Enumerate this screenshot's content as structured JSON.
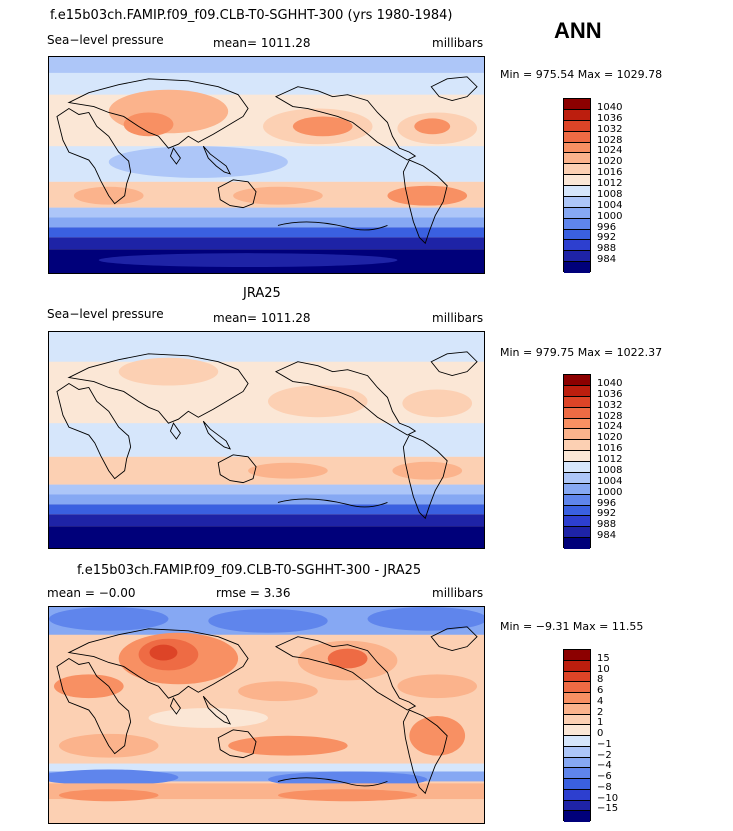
{
  "season": "ANN",
  "palette_main": [
    "#00007a",
    "#1e23a6",
    "#2d3fcf",
    "#3a60e0",
    "#5f85ec",
    "#86a8f3",
    "#adc6f8",
    "#d6e6fb",
    "#fbe7d6",
    "#fcd0b3",
    "#fbb38c",
    "#f89063",
    "#ee6b44",
    "#dd4427",
    "#bc1e0e",
    "#8c0000"
  ],
  "palette_diff": [
    "#00007a",
    "#1e23a6",
    "#2d3fcf",
    "#3a60e0",
    "#5f85ec",
    "#86a8f3",
    "#adc6f8",
    "#d6e6fb",
    "#fbe7d6",
    "#fcd0b3",
    "#fbb38c",
    "#f89063",
    "#ee6b44",
    "#dd4427",
    "#bc1e0e",
    "#8c0000"
  ],
  "panels": [
    {
      "title": "f.e15b03ch.FAMIP.f09_f09.CLB-T0-SGHHT-300 (yrs 1980-1984)",
      "left_label": "Sea−level pressure",
      "center_label": "mean=  1011.28",
      "right_label": "millibars",
      "range_text": "Min = 975.54  Max = 1029.78",
      "map_name": "model-slp-map",
      "colorbar_levels": [
        "1040",
        "1036",
        "1032",
        "1028",
        "1024",
        "1020",
        "1016",
        "1012",
        "1008",
        "1004",
        "1000",
        "996",
        "992",
        "988",
        "984"
      ]
    },
    {
      "title": "JRA25",
      "left_label": "Sea−level pressure",
      "center_label": "mean=  1011.28",
      "right_label": "millibars",
      "range_text": "Min = 979.75  Max = 1022.37",
      "map_name": "obs-slp-map",
      "colorbar_levels": [
        "1040",
        "1036",
        "1032",
        "1028",
        "1024",
        "1020",
        "1016",
        "1012",
        "1008",
        "1004",
        "1000",
        "996",
        "992",
        "988",
        "984"
      ]
    },
    {
      "title": "f.e15b03ch.FAMIP.f09_f09.CLB-T0-SGHHT-300 - JRA25",
      "left_label": "mean =   −0.00",
      "center_label": "rmse =     3.36",
      "right_label": "millibars",
      "range_text": "Min =   −9.31  Max =   11.55",
      "map_name": "difference-map",
      "colorbar_levels": [
        "15",
        "10",
        "8",
        "6",
        "4",
        "2",
        "1",
        "0",
        "−1",
        "−2",
        "−4",
        "−6",
        "−8",
        "−10",
        "−15"
      ]
    }
  ]
}
